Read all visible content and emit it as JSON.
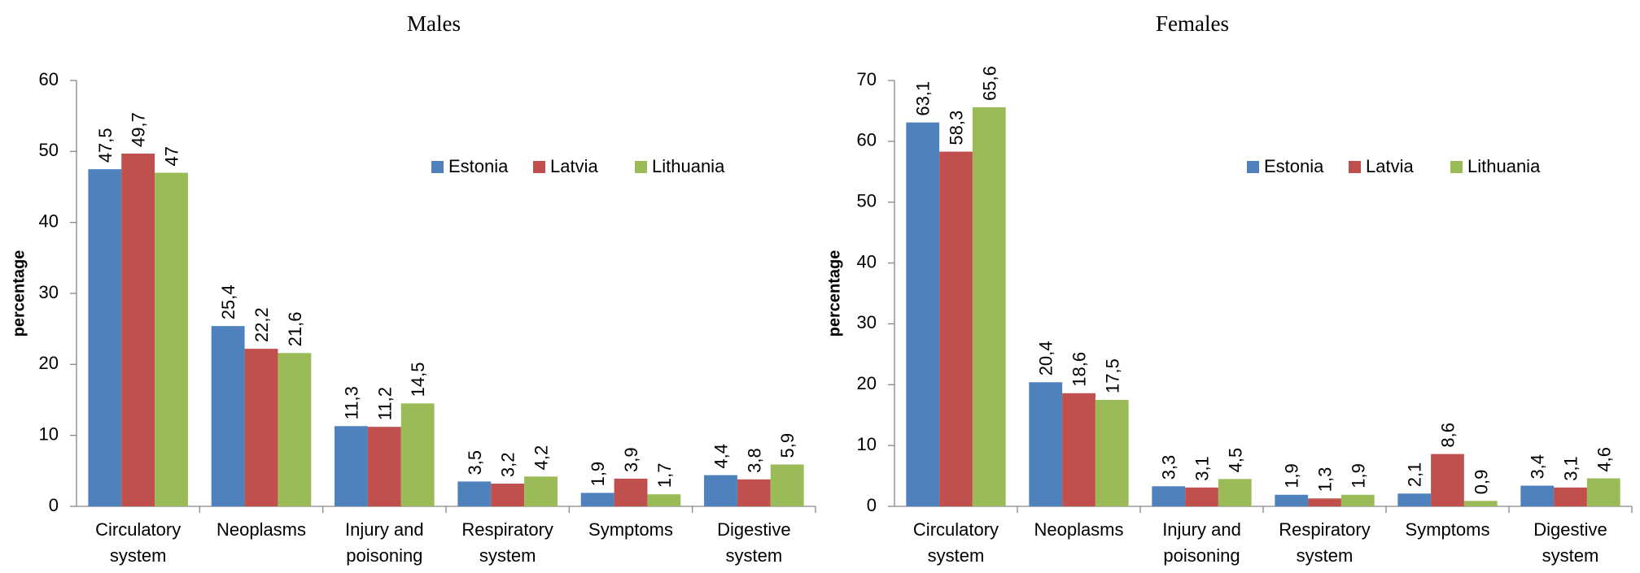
{
  "chart_data": [
    {
      "type": "bar",
      "title": "Males",
      "y_label": "percentage",
      "categories": [
        "Circulatory system",
        "Neoplasms",
        "Injury and poisoning",
        "Respiratory system",
        "Symptoms",
        "Digestive system"
      ],
      "series": [
        {
          "name": "Estonia",
          "color": "#4f81bd",
          "values": [
            47.5,
            25.4,
            11.3,
            3.5,
            1.9,
            4.4
          ],
          "value_labels": [
            "47,5",
            "25,4",
            "11,3",
            "3,5",
            "1,9",
            "4,4"
          ]
        },
        {
          "name": "Latvia",
          "color": "#c0504d",
          "values": [
            49.7,
            22.2,
            11.2,
            3.2,
            3.9,
            3.8
          ],
          "value_labels": [
            "49,7",
            "22,2",
            "11,2",
            "3,2",
            "3,9",
            "3,8"
          ]
        },
        {
          "name": "Lithuania",
          "color": "#9bbb59",
          "values": [
            47,
            21.6,
            14.5,
            4.2,
            1.7,
            5.9
          ],
          "value_labels": [
            "47",
            "21,6",
            "14,5",
            "4,2",
            "1,7",
            "5,9"
          ]
        }
      ],
      "ylim": [
        0,
        60
      ],
      "yticks": [
        0,
        10,
        20,
        30,
        40,
        50,
        60
      ],
      "grid": false,
      "legend": "upper right"
    },
    {
      "type": "bar",
      "title": "Females",
      "y_label": "percentage",
      "categories": [
        "Circulatory system",
        "Neoplasms",
        "Injury and poisoning",
        "Respiratory system",
        "Symptoms",
        "Digestive system"
      ],
      "series": [
        {
          "name": "Estonia",
          "color": "#4f81bd",
          "values": [
            63.1,
            20.4,
            3.3,
            1.9,
            2.1,
            3.4
          ],
          "value_labels": [
            "63,1",
            "20,4",
            "3,3",
            "1,9",
            "2,1",
            "3,4"
          ]
        },
        {
          "name": "Latvia",
          "color": "#c0504d",
          "values": [
            58.3,
            18.6,
            3.1,
            1.3,
            8.6,
            3.1
          ],
          "value_labels": [
            "58,3",
            "18,6",
            "3,1",
            "1,3",
            "8,6",
            "3,1"
          ]
        },
        {
          "name": "Lithuania",
          "color": "#9bbb59",
          "values": [
            65.6,
            17.5,
            4.5,
            1.9,
            0.9,
            4.6
          ],
          "value_labels": [
            "65,6",
            "17,5",
            "4,5",
            "1,9",
            "0,9",
            "4,6"
          ]
        }
      ],
      "ylim": [
        0,
        70
      ],
      "yticks": [
        0,
        10,
        20,
        30,
        40,
        50,
        60,
        70
      ],
      "grid": false,
      "legend": "upper right"
    }
  ]
}
